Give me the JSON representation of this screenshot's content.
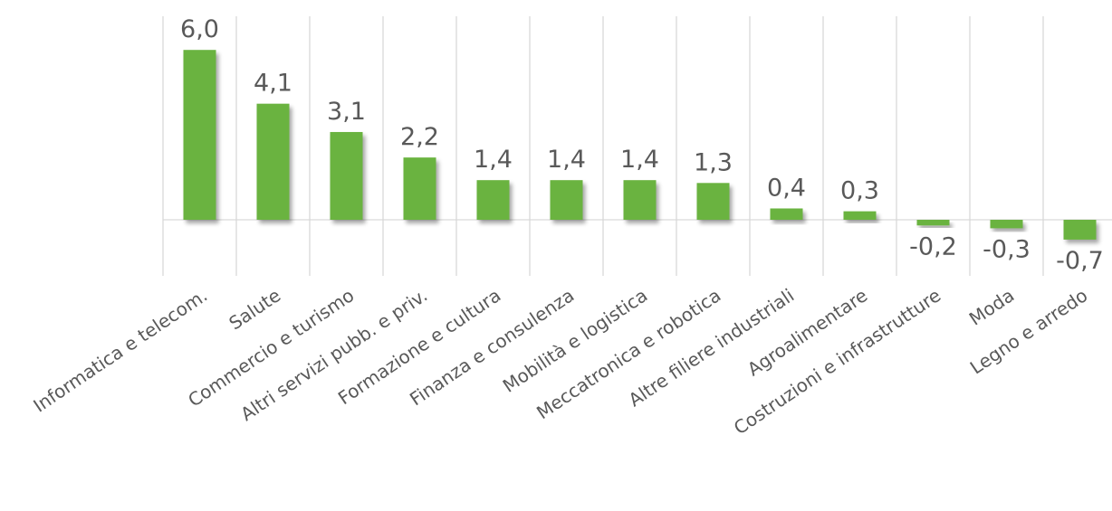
{
  "chart_data": {
    "type": "bar",
    "categories": [
      "Informatica e telecom.",
      "Salute",
      "Commercio e turismo",
      "Altri servizi pubb. e priv.",
      "Formazione e cultura",
      "Finanza e consulenza",
      "Mobilità e logistica",
      "Meccatronica e robotica",
      "Altre filiere industriali",
      "Agroalimentare",
      "Costruzioni e infrastrutture",
      "Moda",
      "Legno e arredo"
    ],
    "values": [
      6.0,
      4.1,
      3.1,
      2.2,
      1.4,
      1.4,
      1.4,
      1.3,
      0.4,
      0.3,
      -0.2,
      -0.3,
      -0.7
    ],
    "value_labels": [
      "6,0",
      "4,1",
      "3,1",
      "2,2",
      "1,4",
      "1,4",
      "1,4",
      "1,3",
      "0,4",
      "0,3",
      "-0,2",
      "-0,3",
      "-0,7"
    ],
    "title": "",
    "xlabel": "",
    "ylabel": "",
    "grid": true,
    "bar_color": "#6ab33f",
    "label_color": "#595959",
    "grid_color": "#d9d9d9"
  }
}
